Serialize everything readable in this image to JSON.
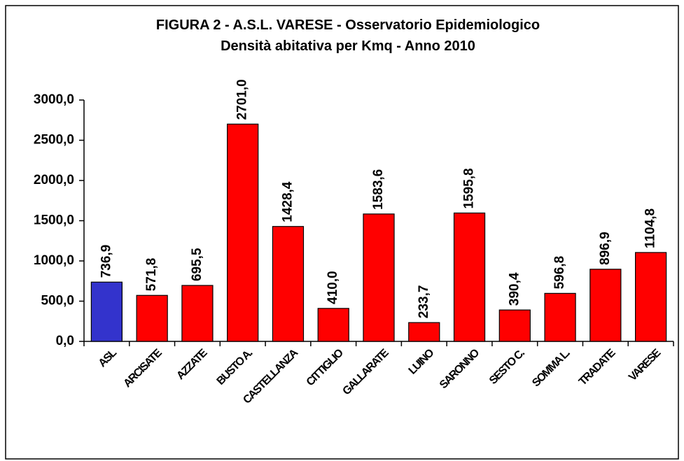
{
  "chart_data": {
    "type": "bar",
    "title": "FIGURA 2 - A.S.L.  VARESE - Osservatorio Epidemiologico",
    "subtitle": "Densità abitativa per Kmq - Anno 2010",
    "categories": [
      "ASL",
      "ARCISATE",
      "AZZATE",
      "BUSTO A.",
      "CASTELLANZA",
      "CITTIGLIO",
      "GALLARATE",
      "LUINO",
      "SARONNO",
      "SESTO C.",
      "SOMMA L.",
      "TRADATE",
      "VARESE"
    ],
    "values": [
      736.9,
      571.8,
      695.5,
      2701.0,
      1428.4,
      410.0,
      1583.6,
      233.7,
      1595.8,
      390.4,
      596.8,
      896.9,
      1104.8
    ],
    "value_labels": [
      "736,9",
      "571,8",
      "695,5",
      "2701,0",
      "1428,4",
      "410,0",
      "1583,6",
      "233,7",
      "1595,8",
      "390,4",
      "596,8",
      "896,9",
      "1104,8"
    ],
    "colors": [
      "#3333cc",
      "#ff0000",
      "#ff0000",
      "#ff0000",
      "#ff0000",
      "#ff0000",
      "#ff0000",
      "#ff0000",
      "#ff0000",
      "#ff0000",
      "#ff0000",
      "#ff0000",
      "#ff0000"
    ],
    "ylim": [
      0,
      3000
    ],
    "yticks": [
      {
        "value": 0,
        "label": "0,0"
      },
      {
        "value": 500,
        "label": "500,0"
      },
      {
        "value": 1000,
        "label": "1000,0"
      },
      {
        "value": 1500,
        "label": "1500,0"
      },
      {
        "value": 2000,
        "label": "2000,0"
      },
      {
        "value": 2500,
        "label": "2500,0"
      },
      {
        "value": 3000,
        "label": "3000,0"
      }
    ],
    "grid": false
  }
}
